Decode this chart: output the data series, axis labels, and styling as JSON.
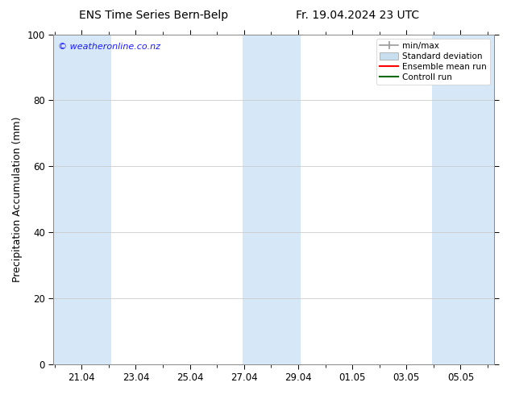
{
  "title_left": "ENS Time Series Bern-Belp",
  "title_right": "Fr. 19.04.2024 23 UTC",
  "ylabel": "Precipitation Accumulation (mm)",
  "watermark": "© weatheronline.co.nz",
  "ylim": [
    0,
    100
  ],
  "yticks": [
    0,
    20,
    40,
    60,
    80,
    100
  ],
  "bg_color": "#ffffff",
  "plot_bg_color": "#ffffff",
  "shade_color": "#d6e8f7",
  "legend_items": [
    {
      "label": "min/max",
      "color": "#aaaaaa",
      "type": "errorbar"
    },
    {
      "label": "Standard deviation",
      "color": "#c8dff0",
      "type": "bar"
    },
    {
      "label": "Ensemble mean run",
      "color": "#ff0000",
      "type": "line"
    },
    {
      "label": "Controll run",
      "color": "#006600",
      "type": "line"
    }
  ],
  "title_fontsize": 10,
  "axis_fontsize": 9,
  "tick_fontsize": 8.5,
  "watermark_color": "#1a1aff",
  "grid_color": "#cccccc",
  "spine_color": "#888888"
}
